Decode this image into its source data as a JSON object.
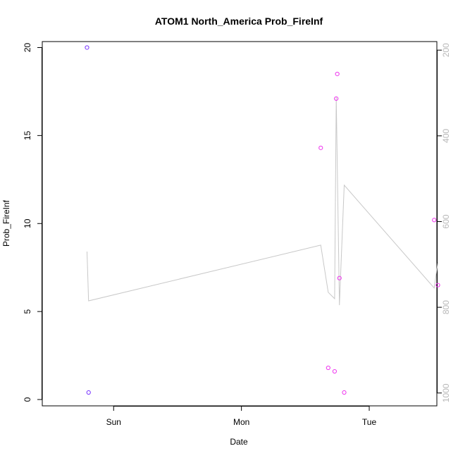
{
  "chart_data": {
    "type": "scatter",
    "title": "ATOM1 North_America Prob_FireInf",
    "xlabel": "Date",
    "ylabel": "Prob_FireInf",
    "x_unit": "hours since Sat 00:00",
    "x_ticks": [
      {
        "label": "Sun",
        "x": 24
      },
      {
        "label": "Mon",
        "x": 48
      },
      {
        "label": "Tue",
        "x": 72
      }
    ],
    "xlim": [
      10.6,
      84.7
    ],
    "ylim": [
      -0.36,
      20.34
    ],
    "y_ticks": [
      0,
      5,
      10,
      15,
      20
    ],
    "right_axis": {
      "ylim": [
        1030,
        180
      ],
      "ticks": [
        200,
        400,
        600,
        800,
        1000
      ],
      "color": "#b8b8b8"
    },
    "line_series": {
      "color": "#c8c8c8",
      "axis": "right",
      "x": [
        19.0,
        19.3,
        62.9,
        64.3,
        65.5,
        65.8,
        66.4,
        67.3,
        84.2,
        84.9
      ],
      "y": [
        670,
        785,
        655,
        765,
        780,
        310,
        795,
        515,
        755,
        695
      ]
    },
    "point_series": [
      {
        "color": "#7733ff",
        "x": [
          19.0,
          19.3
        ],
        "y": [
          20.0,
          0.4
        ]
      },
      {
        "color": "#ee33ee",
        "x": [
          62.9,
          64.3,
          65.5,
          65.8,
          66.0,
          66.4,
          67.3,
          84.2,
          84.9
        ],
        "y": [
          14.3,
          1.8,
          1.6,
          17.1,
          18.5,
          6.9,
          0.4,
          10.2,
          6.5
        ]
      }
    ],
    "grid": false,
    "legend": "none"
  }
}
